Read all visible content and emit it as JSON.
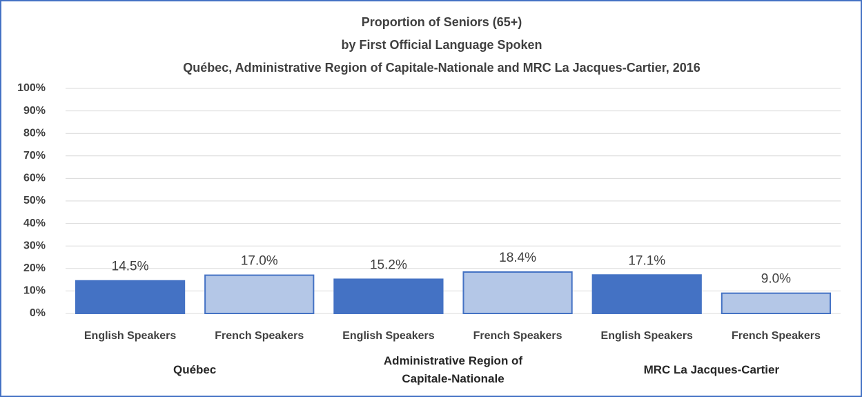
{
  "chart_data": {
    "type": "bar",
    "title": [
      "Proportion of Seniors (65+)",
      "by First Official Language Spoken",
      "Québec, Administrative Region of Capitale-Nationale and MRC La Jacques-Cartier, 2016"
    ],
    "groups": [
      {
        "name": "Québec",
        "categories": [
          "English Speakers",
          "French Speakers"
        ],
        "values": [
          14.5,
          17.0
        ],
        "value_labels": [
          "14.5%",
          "17.0%"
        ]
      },
      {
        "name": "Administrative Region of Capitale-Nationale",
        "categories": [
          "English Speakers",
          "French Speakers"
        ],
        "values": [
          15.2,
          18.4
        ],
        "value_labels": [
          "15.2%",
          "18.4%"
        ]
      },
      {
        "name": "MRC La Jacques-Cartier",
        "categories": [
          "English Speakers",
          "French Speakers"
        ],
        "values": [
          17.1,
          9.0
        ],
        "value_labels": [
          "17.1%",
          "9.0%"
        ]
      }
    ],
    "colors": [
      "#4472c4",
      "#b4c7e7"
    ],
    "edgecolor": "#4472c4",
    "ylim": [
      0,
      100
    ],
    "yticks": [
      {
        "value": 0,
        "label": "0%"
      },
      {
        "value": 10,
        "label": "10%"
      },
      {
        "value": 20,
        "label": "20%"
      },
      {
        "value": 30,
        "label": "30%"
      },
      {
        "value": 40,
        "label": "40%"
      },
      {
        "value": 50,
        "label": "50%"
      },
      {
        "value": 60,
        "label": "60%"
      },
      {
        "value": 70,
        "label": "70%"
      },
      {
        "value": 80,
        "label": "80%"
      },
      {
        "value": 90,
        "label": "90%"
      },
      {
        "value": 100,
        "label": "100%"
      }
    ],
    "grid": true
  }
}
